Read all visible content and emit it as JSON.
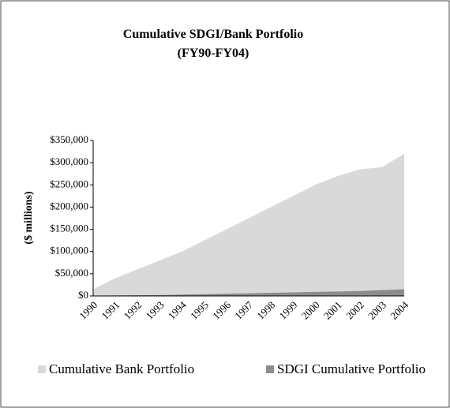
{
  "chart_data": {
    "type": "area",
    "title": "Cumulative SDGI/Bank Portfolio",
    "subtitle": "(FY90-FY04)",
    "y_label": "($ millions)",
    "categories": [
      "1990",
      "1991",
      "1992",
      "1993",
      "1994",
      "1995",
      "1996",
      "1997",
      "1998",
      "1999",
      "2000",
      "2001",
      "2002",
      "2003",
      "2004"
    ],
    "series": [
      {
        "name": "Cumulative Bank Portfolio",
        "color": "#d9d9d9",
        "values": [
          15000,
          40000,
          60000,
          80000,
          100000,
          125000,
          150000,
          175000,
          200000,
          225000,
          250000,
          270000,
          285000,
          290000,
          320000
        ]
      },
      {
        "name": "SDGI Cumulative Portfolio",
        "color": "#8c8c8c",
        "values": [
          500,
          1000,
          1500,
          2000,
          3000,
          4000,
          5000,
          6000,
          7000,
          8000,
          9000,
          10000,
          11000,
          13000,
          15000
        ]
      }
    ],
    "ylim": [
      0,
      350000
    ],
    "yticks": [
      {
        "value": 0,
        "label": "$0"
      },
      {
        "value": 50000,
        "label": "$50,000"
      },
      {
        "value": 100000,
        "label": "$100,000"
      },
      {
        "value": 150000,
        "label": "$150,000"
      },
      {
        "value": 200000,
        "label": "$200,000"
      },
      {
        "value": 250000,
        "label": "$250,000"
      },
      {
        "value": 300000,
        "label": "$300,000"
      },
      {
        "value": 350000,
        "label": "$350,000"
      }
    ],
    "legend": "bottom"
  }
}
